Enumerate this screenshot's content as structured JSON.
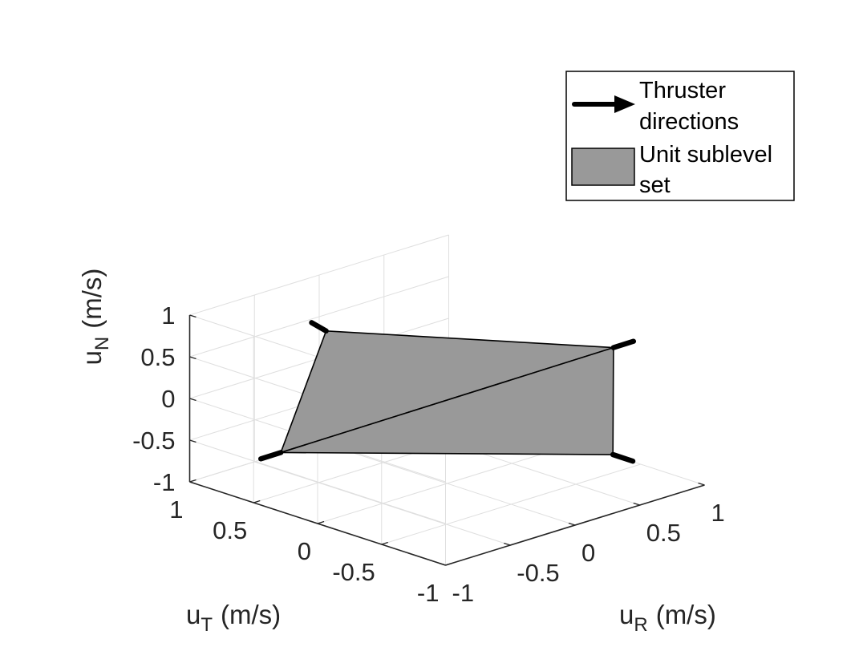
{
  "chart_data": {
    "type": "3d-surface",
    "x_axis": {
      "symbol": "u",
      "subscript": "R",
      "unit": "(m/s)",
      "range": [
        -1,
        1
      ],
      "ticks": [
        "-1",
        "-0.5",
        "0",
        "0.5",
        "1"
      ]
    },
    "y_axis": {
      "symbol": "u",
      "subscript": "T",
      "unit": "(m/s)",
      "range": [
        -1,
        1
      ],
      "ticks": [
        "-1",
        "-0.5",
        "0",
        "0.5",
        "1"
      ]
    },
    "z_axis": {
      "symbol": "u",
      "subscript": "N",
      "unit": "(m/s)",
      "range": [
        -1,
        1
      ],
      "ticks": [
        "-1",
        "-0.5",
        "0",
        "0.5",
        "1"
      ]
    },
    "grid": true,
    "legend_position": "top-right",
    "legend": [
      {
        "kind": "arrow",
        "line1": "Thruster",
        "line2": "directions"
      },
      {
        "kind": "patch",
        "line1": "Unit sublevel",
        "line2": "set"
      }
    ],
    "thrusters": [
      {
        "point": [
          -0.47,
          0.47,
          0.82
        ]
      },
      {
        "point": [
          0.82,
          -0.47,
          0.47
        ]
      },
      {
        "point": [
          0.47,
          -0.82,
          -0.47
        ]
      },
      {
        "point": [
          -0.82,
          0.47,
          -0.47
        ]
      }
    ],
    "faces": [
      [
        0,
        1,
        3
      ],
      [
        1,
        2,
        3
      ]
    ]
  },
  "colors": {
    "surface_fill": "#999999",
    "edge": "#000000",
    "grid": "#dfdfdf",
    "axis": "#262626",
    "legend_patch": "#999999"
  }
}
